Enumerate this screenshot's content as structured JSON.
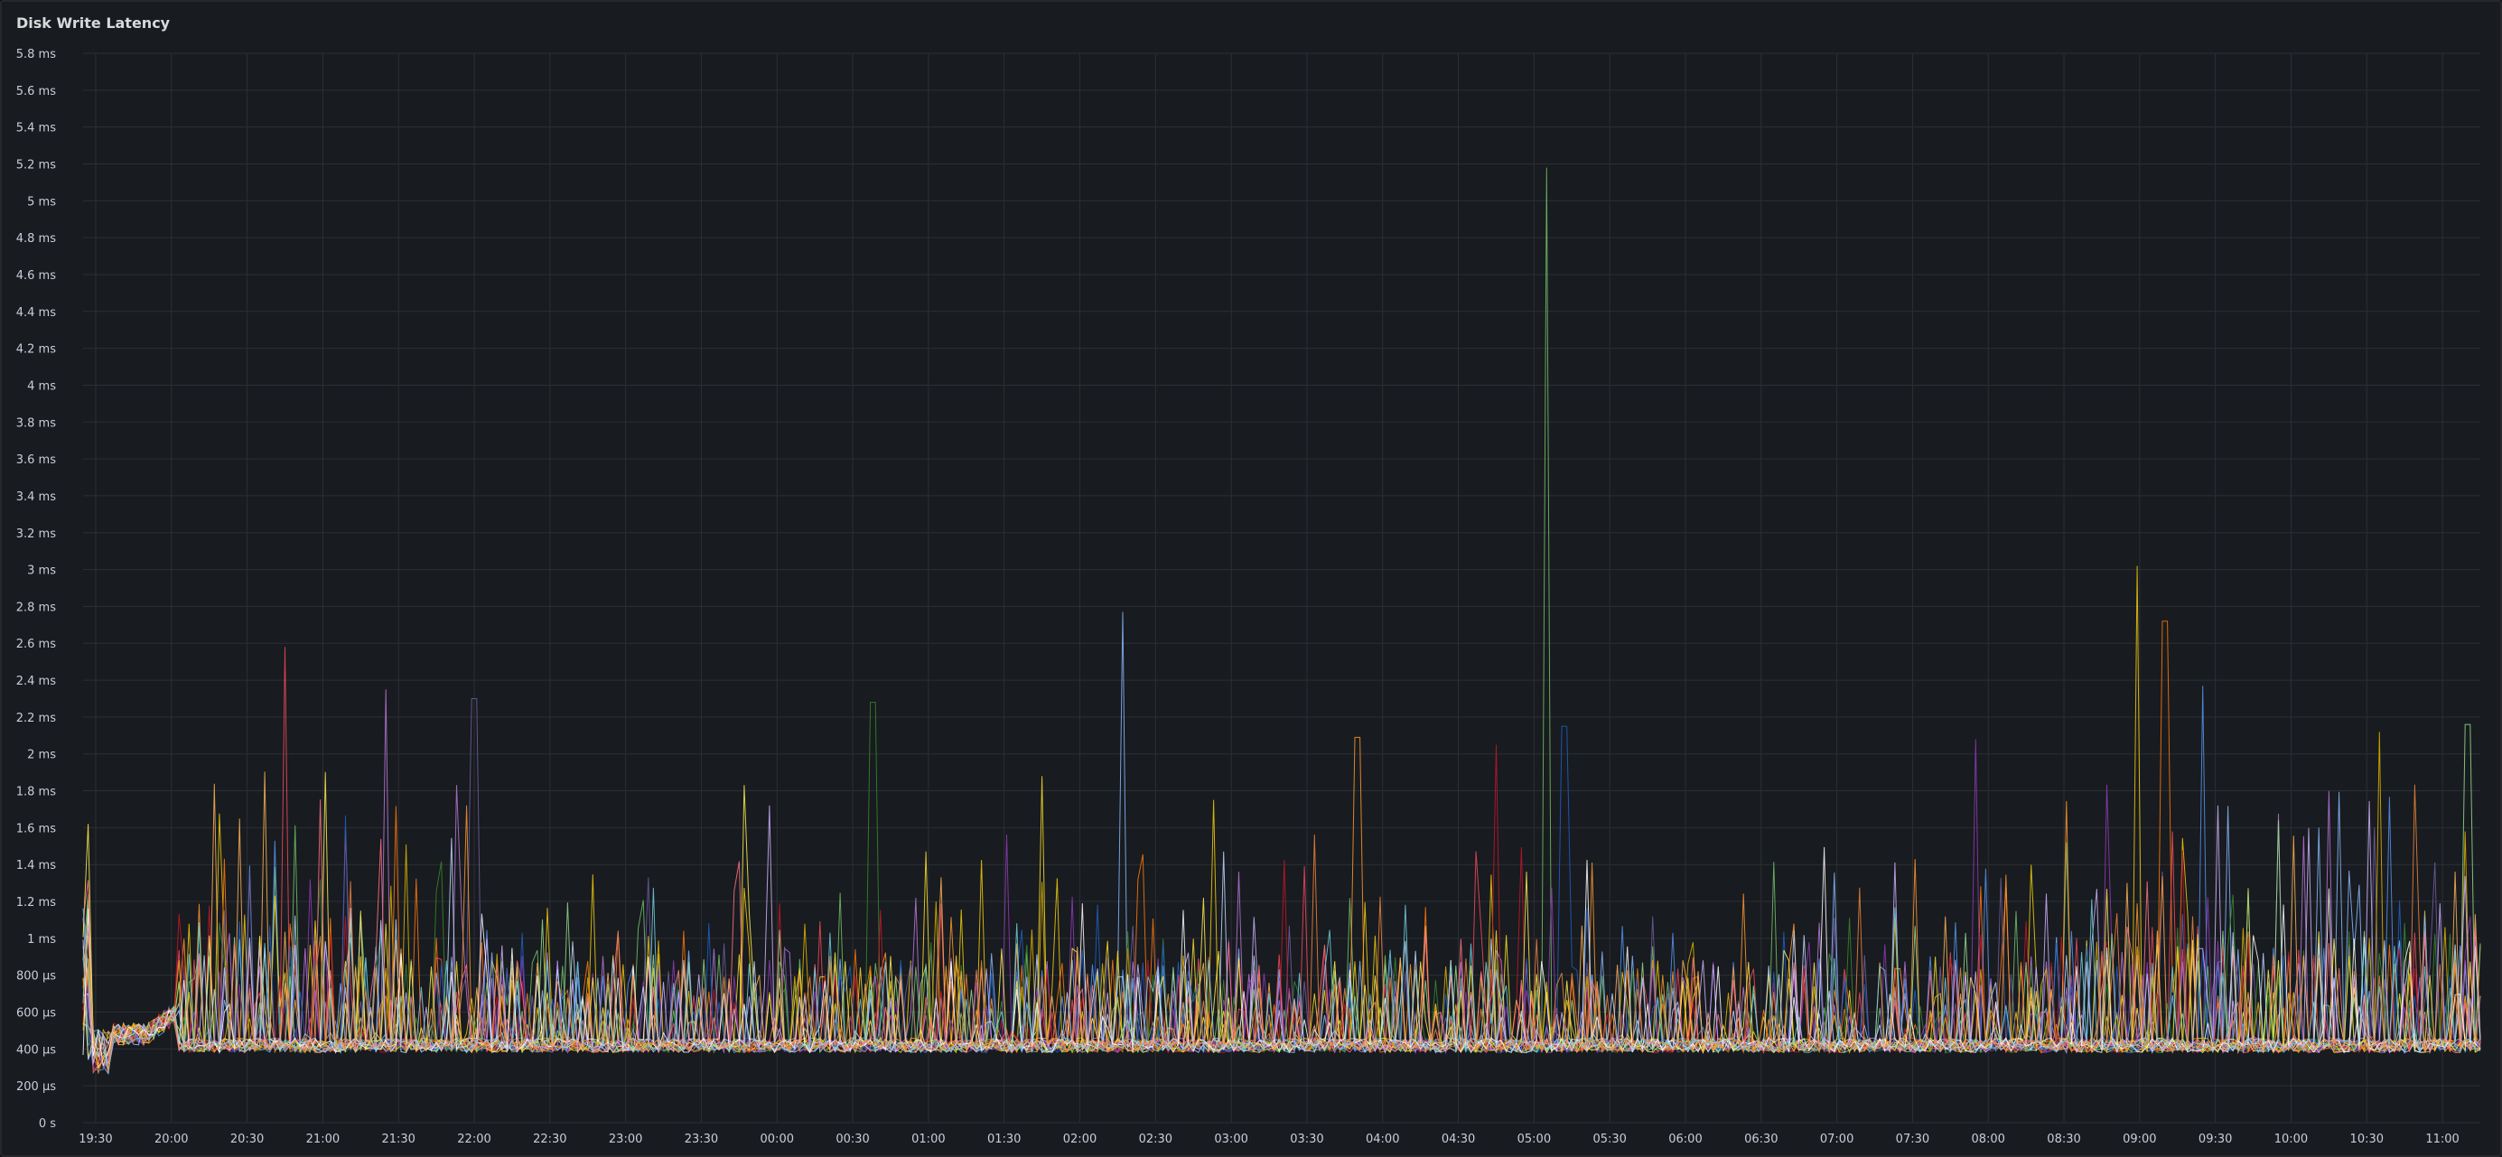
{
  "panel": {
    "title": "Disk Write Latency"
  },
  "chart_data": {
    "type": "line",
    "title": "Disk Write Latency",
    "xlabel": "",
    "ylabel": "",
    "unit": "ms",
    "ylim": [
      0,
      5.8
    ],
    "y_ticks": [
      {
        "value": 0,
        "label": "0 s"
      },
      {
        "value": 0.2,
        "label": "200 µs"
      },
      {
        "value": 0.4,
        "label": "400 µs"
      },
      {
        "value": 0.6,
        "label": "600 µs"
      },
      {
        "value": 0.8,
        "label": "800 µs"
      },
      {
        "value": 1.0,
        "label": "1 ms"
      },
      {
        "value": 1.2,
        "label": "1.2 ms"
      },
      {
        "value": 1.4,
        "label": "1.4 ms"
      },
      {
        "value": 1.6,
        "label": "1.6 ms"
      },
      {
        "value": 1.8,
        "label": "1.8 ms"
      },
      {
        "value": 2.0,
        "label": "2 ms"
      },
      {
        "value": 2.2,
        "label": "2.2 ms"
      },
      {
        "value": 2.4,
        "label": "2.4 ms"
      },
      {
        "value": 2.6,
        "label": "2.6 ms"
      },
      {
        "value": 2.8,
        "label": "2.8 ms"
      },
      {
        "value": 3.0,
        "label": "3 ms"
      },
      {
        "value": 3.2,
        "label": "3.2 ms"
      },
      {
        "value": 3.4,
        "label": "3.4 ms"
      },
      {
        "value": 3.6,
        "label": "3.6 ms"
      },
      {
        "value": 3.8,
        "label": "3.8 ms"
      },
      {
        "value": 4.0,
        "label": "4 ms"
      },
      {
        "value": 4.2,
        "label": "4.2 ms"
      },
      {
        "value": 4.4,
        "label": "4.4 ms"
      },
      {
        "value": 4.6,
        "label": "4.6 ms"
      },
      {
        "value": 4.8,
        "label": "4.8 ms"
      },
      {
        "value": 5.0,
        "label": "5 ms"
      },
      {
        "value": 5.2,
        "label": "5.2 ms"
      },
      {
        "value": 5.4,
        "label": "5.4 ms"
      },
      {
        "value": 5.6,
        "label": "5.6 ms"
      },
      {
        "value": 5.8,
        "label": "5.8 ms"
      }
    ],
    "xlim": [
      "19:25",
      "11:15"
    ],
    "x_ticks": [
      "19:30",
      "20:00",
      "20:30",
      "21:00",
      "21:30",
      "22:00",
      "22:30",
      "23:00",
      "23:30",
      "00:00",
      "00:30",
      "01:00",
      "01:30",
      "02:00",
      "02:30",
      "03:00",
      "03:30",
      "04:00",
      "04:30",
      "05:00",
      "05:30",
      "06:00",
      "06:30",
      "07:00",
      "07:30",
      "08:00",
      "08:30",
      "09:00",
      "09:30",
      "10:00",
      "10:30",
      "11:00"
    ],
    "grid": true,
    "legend": "none",
    "series_count": 24,
    "series_colors": [
      "#73bf69",
      "#f2cc0c",
      "#8ab8ff",
      "#ff780a",
      "#f2495c",
      "#5794f2",
      "#b877d9",
      "#705da0",
      "#37872d",
      "#fade2a",
      "#ff9830",
      "#c4162a",
      "#1f60c4",
      "#8f3bb8",
      "#e0b400",
      "#96d98d",
      "#ffee52",
      "#ffb357",
      "#ff7383",
      "#c0d8ff",
      "#cfb2ff",
      "#ffffff",
      "#6ed0e0",
      "#ef843c"
    ],
    "baseline_ms": 0.4,
    "notable_peaks": [
      {
        "x": "05:05",
        "y": 5.18
      },
      {
        "x": "08:59",
        "y": 3.02
      },
      {
        "x": "02:17",
        "y": 2.77
      },
      {
        "x": "09:10",
        "y": 2.72
      },
      {
        "x": "20:45",
        "y": 2.58
      },
      {
        "x": "09:25",
        "y": 2.37
      },
      {
        "x": "21:25",
        "y": 2.35
      },
      {
        "x": "22:00",
        "y": 2.3
      },
      {
        "x": "00:38",
        "y": 2.28
      },
      {
        "x": "01:45",
        "y": 1.88
      },
      {
        "x": "03:50",
        "y": 2.09
      },
      {
        "x": "04:45",
        "y": 2.05
      },
      {
        "x": "05:12",
        "y": 2.15
      },
      {
        "x": "07:55",
        "y": 2.08
      },
      {
        "x": "10:35",
        "y": 2.12
      },
      {
        "x": "11:10",
        "y": 2.16
      },
      {
        "x": "19:27",
        "y": 1.62
      }
    ]
  }
}
